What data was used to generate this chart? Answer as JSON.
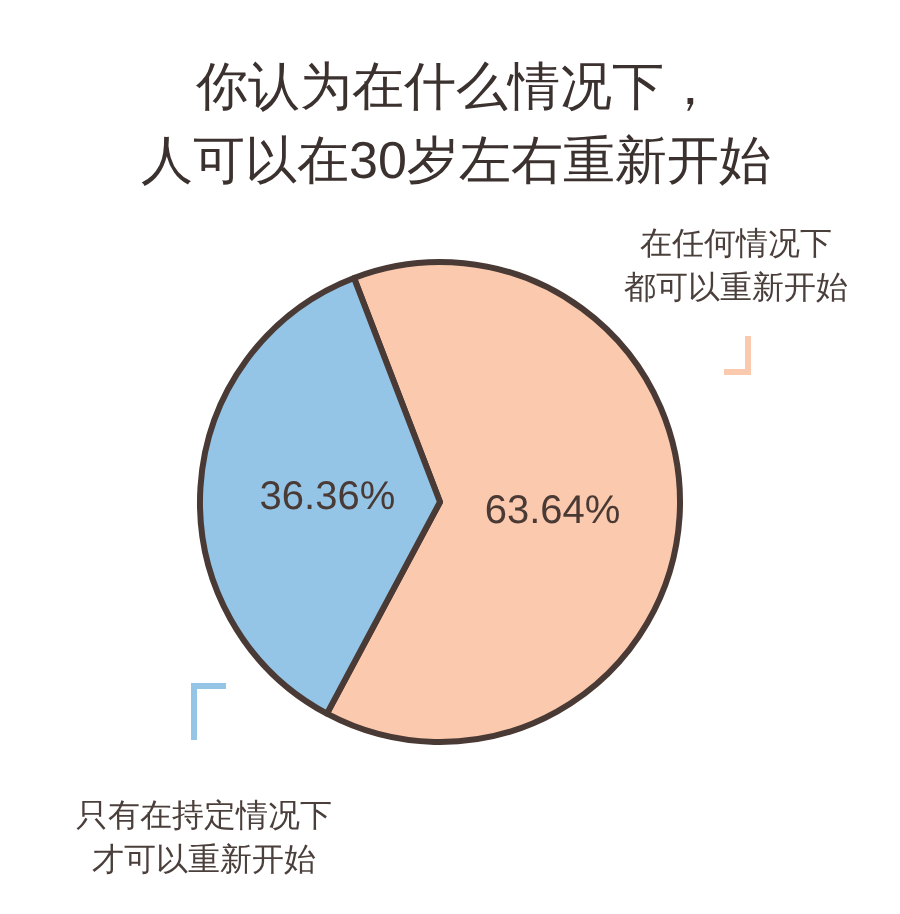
{
  "chart_data": {
    "type": "pie",
    "title": "你认为在什么情况下，人可以在30岁左右重新开始",
    "categories": [
      "在任何情况下都可以重新开始",
      "只有在持定情况下才可以重新开始"
    ],
    "values": [
      63.64,
      36.36
    ],
    "colors": [
      "#fbc9ad",
      "#94c5e7"
    ],
    "value_labels": [
      "63.64%",
      "36.36%"
    ]
  }
}
